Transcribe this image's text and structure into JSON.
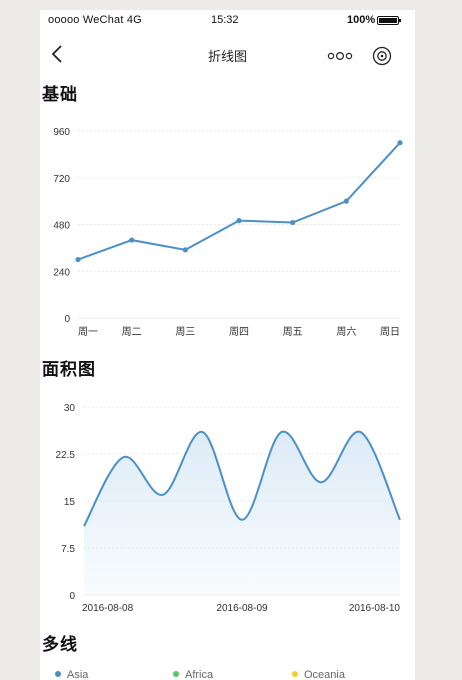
{
  "status": {
    "carrier": "ooooo WeChat 4G",
    "time": "15:32",
    "battery": "100%"
  },
  "nav": {
    "title": "折线图",
    "back_icon": "back-arrow-icon",
    "more_icon": "more-dots-icon",
    "target_icon": "target-icon"
  },
  "sections": [
    {
      "title": "基础"
    },
    {
      "title": "面积图"
    },
    {
      "title": "多线"
    }
  ],
  "colors": {
    "line": "#4b8fc7",
    "grid": "#e8e8e8",
    "axis_text": "#333333",
    "area": "#dbeaf7",
    "asia": "#4b8fc7",
    "africa": "#5ac46b",
    "oceania": "#f3d12c"
  },
  "chart_data": [
    {
      "type": "line",
      "categories": [
        "周一",
        "周二",
        "周三",
        "周四",
        "周五",
        "周六",
        "周日"
      ],
      "series": [
        {
          "values": [
            300,
            400,
            350,
            500,
            490,
            600,
            900
          ]
        }
      ],
      "yticks": [
        "0",
        "240",
        "480",
        "720",
        "960"
      ],
      "ylim": [
        0,
        960
      ],
      "grid": true
    },
    {
      "type": "area",
      "x": [
        "2016-08-08 00:00",
        "2016-08-08 06:00",
        "2016-08-08 12:00",
        "2016-08-08 18:00",
        "2016-08-09 00:00",
        "2016-08-09 06:00",
        "2016-08-09 12:00",
        "2016-08-09 18:00",
        "2016-08-10 00:00"
      ],
      "xticks": [
        "2016-08-08",
        "2016-08-09",
        "2016-08-10"
      ],
      "series": [
        {
          "values": [
            11,
            22,
            16,
            26,
            12,
            26,
            18,
            26,
            12
          ]
        }
      ],
      "yticks": [
        "0",
        "7.5",
        "15",
        "22.5",
        "30"
      ],
      "ylim": [
        0,
        30
      ],
      "grid": true
    },
    {
      "type": "line",
      "series": [
        {
          "name": "Asia"
        },
        {
          "name": "Africa"
        },
        {
          "name": "Oceania"
        }
      ],
      "legend": "bottom"
    }
  ]
}
